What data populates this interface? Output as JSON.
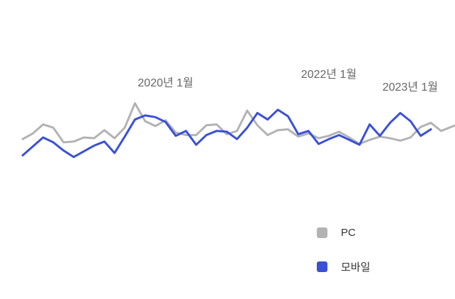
{
  "chart_data": {
    "type": "line",
    "annotations": [
      {
        "text": "2020년 1월",
        "x_index": 14
      },
      {
        "text": "2022년 1월",
        "x_index": 30
      },
      {
        "text": "2023년 1월",
        "x_index": 42
      }
    ],
    "series": [
      {
        "name": "PC",
        "color": "#b3b3b3",
        "values": [
          62,
          55,
          44,
          48,
          66,
          65,
          60,
          61,
          51,
          61,
          48,
          18,
          40,
          46,
          39,
          54,
          57,
          57,
          45,
          44,
          56,
          52,
          27,
          45,
          57,
          51,
          50,
          59,
          55,
          61,
          58,
          53,
          60,
          68,
          63,
          59,
          61,
          64,
          60,
          47,
          42,
          52,
          47,
          42,
          61,
          62
        ]
      },
      {
        "name": "모바일",
        "color": "#3a50d8",
        "values": [
          82,
          71,
          60,
          66,
          76,
          84,
          77,
          70,
          65,
          79,
          59,
          38,
          33,
          35,
          41,
          58,
          52,
          69,
          57,
          52,
          53,
          62,
          48,
          30,
          38,
          26,
          34,
          56,
          52,
          68,
          62,
          57,
          63,
          69,
          44,
          58,
          42,
          30,
          40,
          58,
          50
        ]
      }
    ],
    "legend_position": "bottom-right",
    "grid": false,
    "axes_visible": false
  }
}
